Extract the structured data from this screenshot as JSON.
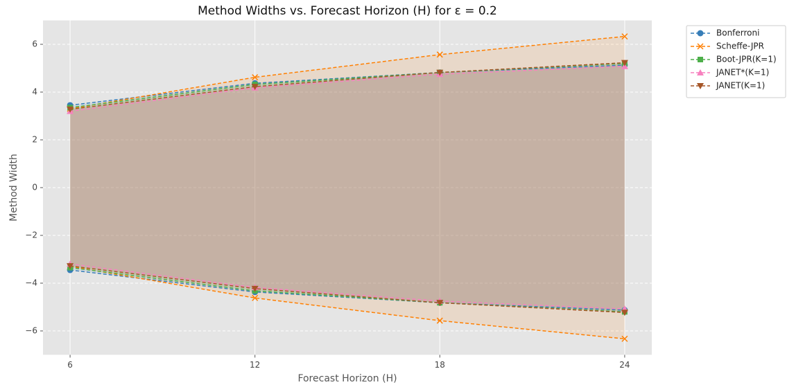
{
  "chart_data": {
    "type": "line",
    "title": "Method Widths vs. Forecast Horizon (H) for ε = 0.2",
    "xlabel": "Forecast Horizon (H)",
    "ylabel": "Method Width",
    "x": [
      6,
      12,
      18,
      24
    ],
    "xlim": [
      5.12,
      24.88
    ],
    "xticks": [
      6,
      12,
      18,
      24
    ],
    "ylim": [
      -7,
      7
    ],
    "yticks": [
      {
        "value": -6,
        "label": "−6"
      },
      {
        "value": -4,
        "label": "−4"
      },
      {
        "value": -2,
        "label": "−2"
      },
      0,
      2,
      4,
      6
    ],
    "grid": true,
    "legend": "outside upper right",
    "series": [
      {
        "name": "Bonferroni",
        "color": "#377eb8",
        "marker": "circle",
        "values": [
          3.45,
          4.37,
          4.82,
          5.13
        ],
        "lower_values": [
          -3.45,
          -4.37,
          -4.82,
          -5.13
        ]
      },
      {
        "name": "Scheffe-JPR",
        "color": "#ff7f00",
        "marker": "x",
        "values": [
          3.3,
          4.62,
          5.57,
          6.33
        ],
        "lower_values": [
          -3.3,
          -4.62,
          -5.57,
          -6.33
        ]
      },
      {
        "name": "Boot-JPR(K=1)",
        "color": "#4daf4a",
        "marker": "square",
        "values": [
          3.35,
          4.32,
          4.82,
          5.2
        ],
        "lower_values": [
          -3.35,
          -4.32,
          -4.82,
          -5.2
        ]
      },
      {
        "name": "JANET*(K=1)",
        "color": "#f781bf",
        "marker": "triangle-up",
        "values": [
          3.2,
          4.18,
          4.75,
          5.08
        ],
        "lower_values": [
          -3.2,
          -4.18,
          -4.75,
          -5.08
        ]
      },
      {
        "name": "JANET(K=1)",
        "color": "#a65628",
        "marker": "triangle-down",
        "values": [
          3.28,
          4.23,
          4.82,
          5.23
        ],
        "lower_values": [
          -3.28,
          -4.23,
          -4.82,
          -5.23
        ]
      }
    ]
  }
}
